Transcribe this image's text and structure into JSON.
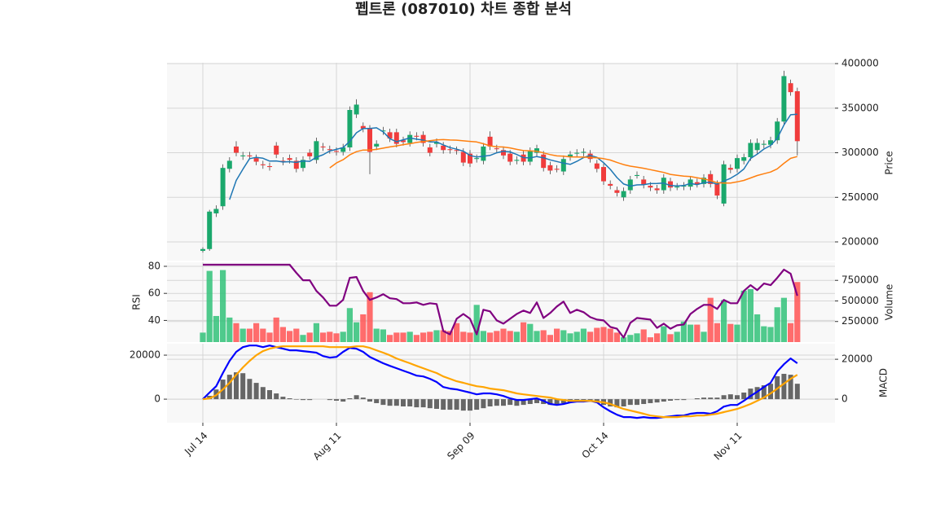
{
  "chart_data": {
    "type": "candlestick",
    "title": "펩트론 (087010) 차트 종합 분석",
    "grid": true,
    "categories": [
      "Jul 14",
      null,
      null,
      null,
      null,
      null,
      null,
      null,
      null,
      null,
      null,
      null,
      null,
      null,
      null,
      null,
      null,
      null,
      null,
      null,
      "Aug 11",
      null,
      null,
      null,
      null,
      null,
      null,
      null,
      null,
      null,
      null,
      null,
      null,
      null,
      null,
      null,
      null,
      null,
      null,
      null,
      "Sep 09",
      null,
      null,
      null,
      null,
      null,
      null,
      null,
      null,
      null,
      null,
      null,
      null,
      null,
      null,
      null,
      null,
      null,
      null,
      null,
      "Oct 14",
      null,
      null,
      null,
      null,
      null,
      null,
      null,
      null,
      null,
      null,
      null,
      null,
      null,
      null,
      null,
      null,
      null,
      null,
      null,
      "Nov 11",
      null,
      null,
      null,
      null,
      null,
      null,
      null,
      null,
      null
    ],
    "price": {
      "ylabel": "Price",
      "ylim": [
        179000,
        401000
      ],
      "yticks": [
        200000,
        250000,
        300000,
        350000,
        400000
      ],
      "up_color": "#1aa86c",
      "down_color": "#f03c3c",
      "open": [
        190000,
        192000,
        232000,
        240000,
        282000,
        307000,
        296000,
        297000,
        294000,
        287000,
        285000,
        308000,
        291000,
        294000,
        291000,
        283000,
        300000,
        292000,
        307000,
        304000,
        302000,
        301000,
        306000,
        343000,
        330000,
        327000,
        307000,
        324000,
        323000,
        323000,
        314000,
        311000,
        319000,
        320000,
        306000,
        310000,
        308000,
        304000,
        303000,
        301000,
        299000,
        293000,
        291000,
        318000,
        305000,
        303000,
        299000,
        291000,
        298000,
        290000,
        300000,
        298000,
        286000,
        282000,
        279000,
        295000,
        299000,
        300000,
        299000,
        288000,
        284000,
        265000,
        258000,
        250000,
        258000,
        274000,
        270000,
        263000,
        260000,
        258000,
        268000,
        261000,
        262000,
        262000,
        267000,
        265000,
        276000,
        265000,
        243000,
        283000,
        282000,
        291000,
        295000,
        303000,
        309000,
        309000,
        314000,
        335000,
        378000,
        369000
      ],
      "high": [
        194000,
        236000,
        241000,
        287000,
        295000,
        313000,
        301000,
        301000,
        298000,
        291000,
        289000,
        312000,
        295000,
        298000,
        295000,
        296000,
        304000,
        317000,
        311000,
        308000,
        306000,
        310000,
        352000,
        360000,
        334000,
        331000,
        314000,
        329000,
        327000,
        327000,
        318000,
        324000,
        323000,
        324000,
        310000,
        316000,
        312000,
        308000,
        307000,
        305000,
        303000,
        298000,
        311000,
        324000,
        309000,
        307000,
        303000,
        296000,
        302000,
        306000,
        309000,
        302000,
        290000,
        286000,
        297000,
        302000,
        304000,
        305000,
        303000,
        292000,
        288000,
        269000,
        262000,
        261000,
        274000,
        279000,
        274000,
        267000,
        264000,
        276000,
        272000,
        266000,
        267000,
        274000,
        271000,
        276000,
        280000,
        269000,
        291000,
        287000,
        298000,
        299000,
        315000,
        316000,
        314000,
        318000,
        339000,
        392000,
        382000,
        373000
      ],
      "low": [
        188000,
        190000,
        228000,
        236000,
        278000,
        296000,
        292000,
        293000,
        286000,
        282000,
        280000,
        294000,
        286000,
        288000,
        278000,
        279000,
        292000,
        288000,
        302000,
        299000,
        297000,
        297000,
        302000,
        339000,
        323000,
        276000,
        303000,
        320000,
        312000,
        306000,
        308000,
        307000,
        314000,
        307000,
        296000,
        306000,
        299000,
        299000,
        298000,
        285000,
        284000,
        289000,
        287000,
        303000,
        300000,
        293000,
        286000,
        287000,
        286000,
        286000,
        296000,
        279000,
        276000,
        278000,
        275000,
        291000,
        295000,
        296000,
        289000,
        278000,
        264000,
        259000,
        251000,
        246000,
        254000,
        271000,
        260000,
        257000,
        254000,
        254000,
        257000,
        258000,
        258000,
        258000,
        261000,
        261000,
        261000,
        248000,
        240000,
        277000,
        278000,
        287000,
        291000,
        299000,
        305000,
        305000,
        310000,
        331000,
        364000,
        297000
      ],
      "close": [
        192000,
        234000,
        237000,
        283000,
        291000,
        300000,
        297000,
        296000,
        290000,
        286000,
        284000,
        298000,
        290000,
        292000,
        282000,
        292000,
        296000,
        313000,
        306000,
        303000,
        301000,
        306000,
        348000,
        354000,
        327000,
        301000,
        310000,
        325000,
        316000,
        310000,
        312000,
        320000,
        318000,
        311000,
        300000,
        312000,
        303000,
        303000,
        302000,
        289000,
        288000,
        294000,
        307000,
        307000,
        304000,
        297000,
        290000,
        292000,
        290000,
        302000,
        305000,
        283000,
        280000,
        281000,
        293000,
        298000,
        300000,
        301000,
        293000,
        282000,
        268000,
        263000,
        255000,
        257000,
        270000,
        275000,
        264000,
        261000,
        258000,
        272000,
        261000,
        262000,
        263000,
        270000,
        265000,
        272000,
        265000,
        252000,
        287000,
        281000,
        294000,
        295000,
        311000,
        311000,
        310000,
        314000,
        335000,
        386000,
        368000,
        313000
      ],
      "ma": [
        {
          "color": "#1f77b4",
          "values": [
            null,
            null,
            null,
            null,
            247400,
            269000,
            281600,
            293400,
            294800,
            293800,
            290600,
            290800,
            289600,
            290000,
            289200,
            290800,
            290400,
            295000,
            297800,
            302000,
            303800,
            305800,
            312800,
            322400,
            327200,
            327200,
            328000,
            323400,
            315800,
            312400,
            314600,
            316600,
            315200,
            314200,
            312200,
            312200,
            308800,
            305800,
            304000,
            301800,
            297000,
            295200,
            296000,
            297000,
            300000,
            301800,
            301000,
            298000,
            294600,
            294200,
            295800,
            294400,
            292000,
            290200,
            288400,
            287000,
            290400,
            294600,
            297000,
            294800,
            288800,
            281400,
            272200,
            265000,
            262600,
            264000,
            264200,
            265400,
            265600,
            266000,
            263200,
            262800,
            263200,
            265600,
            264200,
            266400,
            267000,
            264800,
            268200,
            271400,
            275800,
            281800,
            293600,
            298400,
            304200,
            308200,
            316200,
            331200,
            342600,
            343200
          ]
        },
        {
          "color": "#ff7f0e",
          "values": [
            null,
            null,
            null,
            null,
            null,
            null,
            null,
            null,
            null,
            null,
            null,
            null,
            null,
            null,
            null,
            null,
            null,
            null,
            null,
            283100,
            288550,
            292150,
            297700,
            301250,
            303050,
            303100,
            303750,
            305200,
            306500,
            307700,
            309100,
            310200,
            311600,
            312550,
            313450,
            314450,
            314800,
            314300,
            314100,
            313400,
            312750,
            312150,
            310100,
            307750,
            306600,
            306400,
            305400,
            303750,
            302450,
            302050,
            301700,
            299850,
            297950,
            296450,
            296100,
            295400,
            295250,
            295150,
            294700,
            294350,
            293350,
            291800,
            289200,
            286700,
            285000,
            283900,
            282600,
            281050,
            279450,
            277950,
            275750,
            274700,
            273850,
            273300,
            271900,
            270600,
            268850,
            266400,
            266100,
            266050,
            267350,
            268950,
            271750,
            274450,
            276450,
            278400,
            281950,
            288200,
            293700,
            295750
          ]
        }
      ]
    },
    "rsi": {
      "ylabel": "RSI",
      "ylim": [
        24,
        83
      ],
      "yticks": [
        40,
        60,
        80
      ],
      "color": "#800080",
      "values": [
        81.2,
        81.2,
        81.2,
        81.2,
        81.2,
        81.2,
        81.2,
        81.2,
        81.2,
        81.2,
        81.2,
        81.2,
        81.2,
        81.2,
        75.2,
        69.7,
        69.7,
        61.8,
        57.0,
        50.9,
        50.9,
        55.2,
        71.5,
        72.1,
        61.8,
        55.2,
        57.0,
        59.4,
        56.4,
        55.8,
        52.7,
        52.7,
        53.3,
        51.5,
        52.7,
        52.1,
        32.1,
        29.7,
        41.2,
        44.8,
        41.2,
        29.7,
        47.9,
        46.7,
        40.0,
        37.6,
        41.2,
        44.8,
        47.3,
        45.5,
        53.3,
        41.8,
        45.5,
        50.3,
        53.9,
        45.5,
        47.9,
        46.1,
        42.4,
        40.6,
        40.0,
        35.2,
        33.9,
        27.3,
        38.2,
        41.8,
        41.2,
        40.6,
        34.5,
        37.6,
        33.9,
        36.4,
        37.0,
        44.8,
        48.5,
        51.5,
        51.5,
        48.5,
        55.2,
        52.7,
        52.7,
        61.8,
        66.1,
        62.4,
        67.3,
        66.1,
        71.5,
        77.6,
        74.5,
        58.2
      ]
    },
    "volume": {
      "ylabel": "Volume",
      "y2lim": [
        0,
        970000
      ],
      "y2ticks": [
        250000,
        500000,
        750000
      ],
      "up_color": "#3cc47f",
      "down_color": "#ff5c5c",
      "values": [
        115000,
        865000,
        317000,
        875000,
        298000,
        230000,
        163000,
        163000,
        230000,
        163000,
        115000,
        298000,
        183000,
        135000,
        163000,
        87000,
        115000,
        230000,
        115000,
        125000,
        106000,
        125000,
        413000,
        240000,
        337000,
        606000,
        163000,
        154000,
        87000,
        115000,
        115000,
        125000,
        87000,
        115000,
        125000,
        144000,
        144000,
        135000,
        230000,
        125000,
        115000,
        452000,
        135000,
        115000,
        135000,
        163000,
        135000,
        125000,
        240000,
        221000,
        135000,
        144000,
        87000,
        163000,
        144000,
        106000,
        125000,
        163000,
        125000,
        173000,
        183000,
        163000,
        115000,
        58000,
        87000,
        106000,
        154000,
        58000,
        106000,
        192000,
        96000,
        125000,
        250000,
        212000,
        212000,
        125000,
        538000,
        230000,
        510000,
        221000,
        212000,
        625000,
        644000,
        337000,
        192000,
        183000,
        423000,
        538000,
        230000,
        730000
      ]
    },
    "macd": {
      "ylabel": "MACD",
      "ylim": [
        -10700,
        25200
      ],
      "yticks": [
        0,
        20000
      ],
      "y2lim": [
        -11800,
        27800
      ],
      "y2ticks": [
        0,
        20000
      ],
      "macd": {
        "color": "#0000ff",
        "values": [
          0,
          3300,
          6500,
          13100,
          19200,
          23700,
          26100,
          26900,
          26900,
          26100,
          26900,
          26100,
          25300,
          24500,
          24500,
          24100,
          23700,
          23300,
          21600,
          20800,
          21200,
          23700,
          25700,
          25300,
          23700,
          21200,
          19600,
          18000,
          16700,
          15500,
          14300,
          13100,
          11800,
          11400,
          10200,
          8600,
          6100,
          5300,
          4900,
          4100,
          3300,
          2400,
          2900,
          2900,
          2400,
          1600,
          400,
          -400,
          -400,
          0,
          400,
          -800,
          -2400,
          -2900,
          -2400,
          -1600,
          -1200,
          -1200,
          -800,
          -1600,
          -4100,
          -6100,
          -7800,
          -9000,
          -9000,
          -9400,
          -9000,
          -9400,
          -9400,
          -9000,
          -8600,
          -8200,
          -8200,
          -7300,
          -6900,
          -6900,
          -7300,
          -6100,
          -3700,
          -2900,
          -2900,
          -800,
          1600,
          3700,
          6100,
          8200,
          13900,
          17500,
          20400,
          18000
        ]
      },
      "signal": {
        "color": "#ffa500",
        "values": [
          0,
          400,
          2000,
          4900,
          8200,
          12200,
          15900,
          19200,
          22000,
          24100,
          25300,
          26100,
          26500,
          26500,
          26500,
          26500,
          26500,
          26500,
          26500,
          26100,
          26100,
          26100,
          26100,
          26500,
          26500,
          25700,
          24500,
          23300,
          22000,
          20400,
          19200,
          18000,
          16700,
          15500,
          14300,
          13100,
          11400,
          10200,
          9000,
          8200,
          7300,
          6500,
          6100,
          5300,
          4900,
          4500,
          3700,
          2900,
          2400,
          2000,
          1600,
          1200,
          800,
          0,
          -400,
          -800,
          -800,
          -800,
          -800,
          -1200,
          -1600,
          -2400,
          -3700,
          -4900,
          -5700,
          -6500,
          -7300,
          -8200,
          -8600,
          -9000,
          -9000,
          -9000,
          -8600,
          -8600,
          -8200,
          -8200,
          -7800,
          -7300,
          -6500,
          -5700,
          -4900,
          -3700,
          -2400,
          -800,
          800,
          2900,
          5300,
          7800,
          10200,
          12200
        ]
      },
      "histogram": {
        "color": "#666666",
        "values": [
          0,
          1500,
          4400,
          8900,
          11100,
          12200,
          11800,
          9200,
          7400,
          5500,
          4100,
          2600,
          1100,
          400,
          -200,
          -400,
          -400,
          0,
          0,
          -400,
          -700,
          -1100,
          400,
          1800,
          700,
          -1100,
          -1800,
          -2600,
          -3000,
          -3000,
          -3300,
          -3300,
          -3700,
          -3700,
          -4100,
          -4400,
          -4800,
          -4800,
          -4800,
          -5200,
          -5200,
          -4800,
          -4100,
          -3300,
          -3000,
          -3000,
          -2600,
          -3000,
          -2600,
          -2200,
          -1800,
          -2200,
          -2600,
          -2600,
          -1800,
          -1500,
          -1100,
          -1100,
          -700,
          -1100,
          -2600,
          -3300,
          -3700,
          -3300,
          -2600,
          -2600,
          -2200,
          -1800,
          -1500,
          -1100,
          -700,
          -400,
          -400,
          0,
          400,
          700,
          700,
          700,
          1800,
          2200,
          1800,
          3000,
          4800,
          5500,
          6300,
          7000,
          10400,
          11500,
          11100,
          7000
        ]
      }
    }
  }
}
